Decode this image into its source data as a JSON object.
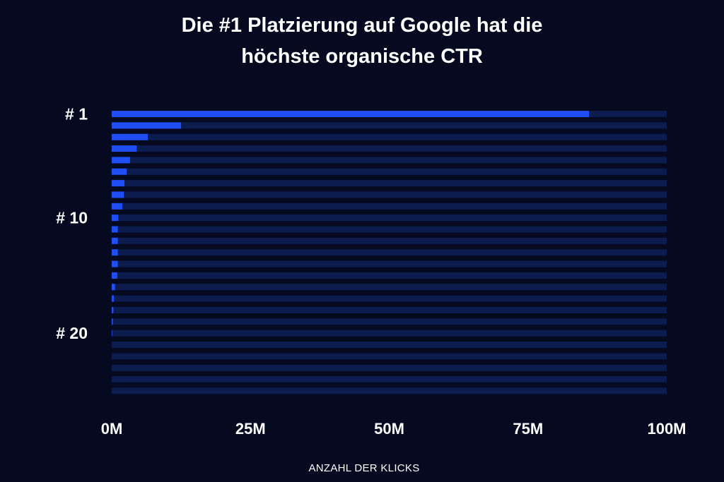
{
  "chart": {
    "title_line1": "Die #1 Platzierung auf Google hat die",
    "title_line2": "höchste organische CTR"
  },
  "colors": {
    "background": "#050a20",
    "bar": "#1f4ef5",
    "track": "#0d1c4e",
    "text": "#ffffff"
  },
  "chart_data": {
    "type": "bar",
    "orientation": "horizontal",
    "title": "Die #1 Platzierung auf Google hat die höchste organische CTR",
    "xlabel": "ANZAHL DER KLICKS",
    "ylabel": "",
    "xlim": [
      0,
      100000000
    ],
    "x_ticks": [
      0,
      25000000,
      50000000,
      75000000,
      100000000
    ],
    "x_tick_labels": [
      "0M",
      "25M",
      "50M",
      "75M",
      "100M"
    ],
    "y_tick_labels": [
      {
        "rank": 1,
        "label": "# 1"
      },
      {
        "rank": 10,
        "label": "# 10"
      },
      {
        "rank": 20,
        "label": "# 20"
      }
    ],
    "categories": [
      1,
      2,
      3,
      4,
      5,
      6,
      7,
      8,
      9,
      10,
      11,
      12,
      13,
      14,
      15,
      16,
      17,
      18,
      19,
      20,
      21,
      22,
      23,
      24,
      25
    ],
    "values": [
      86000000,
      12500000,
      6500000,
      4500000,
      3300000,
      2700000,
      2300000,
      2200000,
      1900000,
      1200000,
      1100000,
      1100000,
      1100000,
      1100000,
      1000000,
      600000,
      400000,
      300000,
      200000,
      100000,
      0,
      0,
      0,
      0,
      0
    ],
    "grid": false,
    "legend": "none"
  }
}
